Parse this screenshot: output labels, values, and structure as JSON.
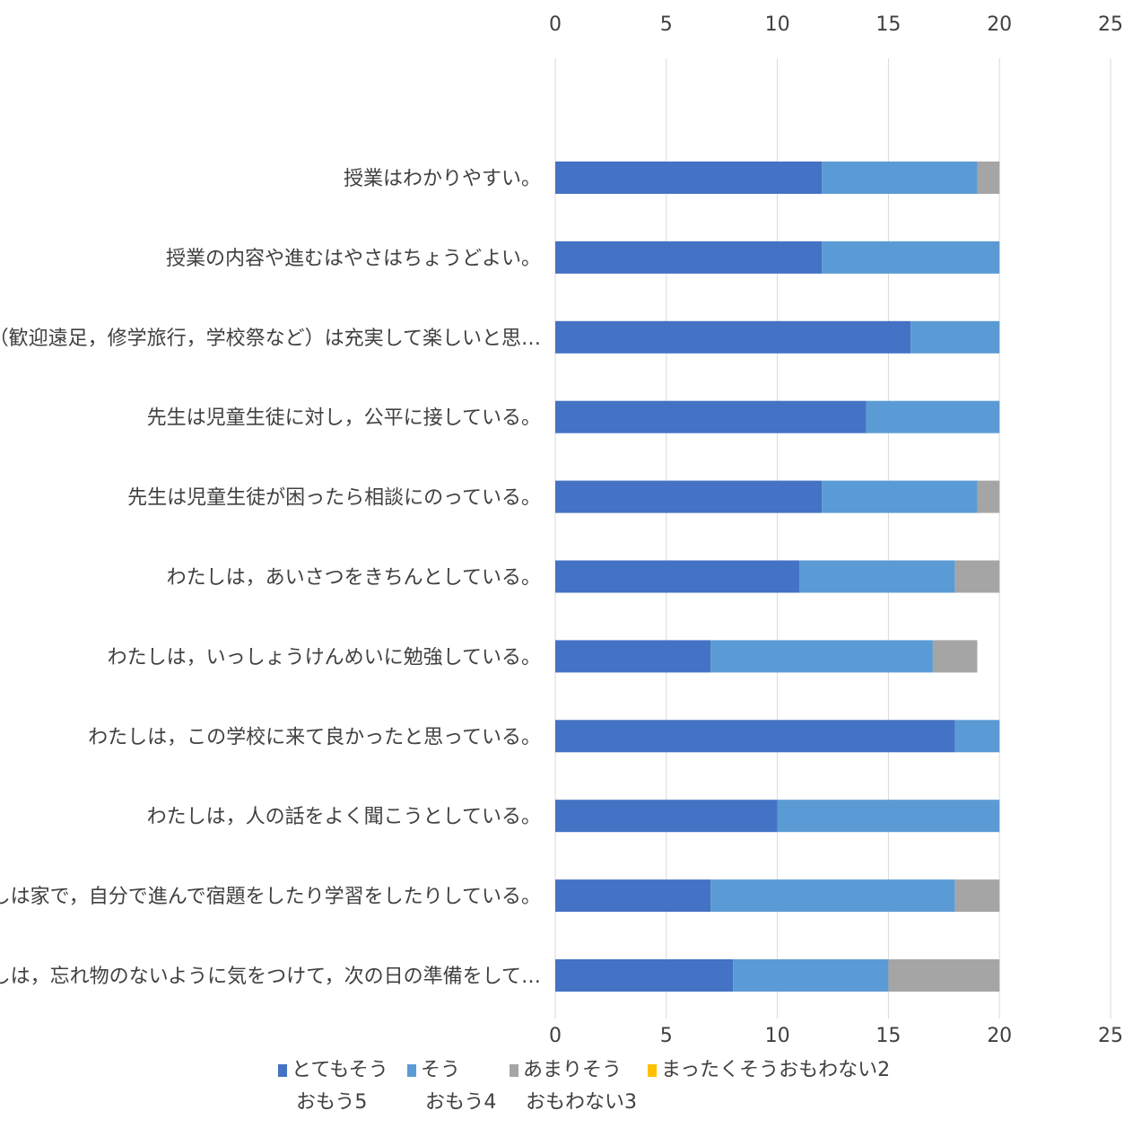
{
  "chart_data": {
    "type": "bar",
    "orientation": "horizontal",
    "stacked": true,
    "xlim": [
      0,
      25
    ],
    "x_ticks": [
      "0",
      "5",
      "10",
      "15",
      "20",
      "25"
    ],
    "x_axis_position": "top-and-bottom",
    "grid": true,
    "categories": [
      "授業はわかりやすい。",
      "授業の内容や進むはやさはちょうどよい。",
      "行事（歓迎遠足，修学旅行，学校祭など）は充実して楽しいと思…",
      "先生は児童生徒に対し，公平に接している。",
      "先生は児童生徒が困ったら相談にのっている。",
      "わたしは，あいさつをきちんとしている。",
      "わたしは，いっしょうけんめいに勉強している。",
      "わたしは，この学校に来て良かったと思っている。",
      "わたしは，人の話をよく聞こうとしている。",
      "わたしは家で，自分で進んで宿題をしたり学習をしたりしている。",
      "わたしは，忘れ物のないように気をつけて，次の日の準備をして…"
    ],
    "series": [
      {
        "name": "とてもそうおもう5",
        "color": "#4472C4",
        "values": [
          12,
          12,
          16,
          14,
          12,
          11,
          7,
          18,
          10,
          7,
          8
        ]
      },
      {
        "name": "そうおもう4",
        "color": "#5B9BD5",
        "values": [
          7,
          8,
          4,
          6,
          7,
          7,
          10,
          2,
          10,
          11,
          7
        ]
      },
      {
        "name": "あまりそうおもわない3",
        "color": "#A5A5A5",
        "values": [
          1,
          0,
          0,
          0,
          1,
          2,
          2,
          0,
          0,
          2,
          5
        ]
      },
      {
        "name": "まったくそうおもわない2",
        "color": "#FFC000",
        "values": [
          0,
          0,
          0,
          0,
          0,
          0,
          0,
          0,
          0,
          0,
          0
        ]
      }
    ],
    "legend_position": "bottom"
  },
  "legend": {
    "items": [
      {
        "line1": "とてもそう",
        "line2": "おもう5",
        "color": "#4472C4"
      },
      {
        "line1": "そう",
        "line2": "おもう4",
        "color": "#5B9BD5"
      },
      {
        "line1": "あまりそう",
        "line2": "おもわない3",
        "color": "#A5A5A5"
      },
      {
        "line1": "まったくそうおもわない2",
        "line2": "",
        "color": "#FFC000"
      }
    ]
  }
}
